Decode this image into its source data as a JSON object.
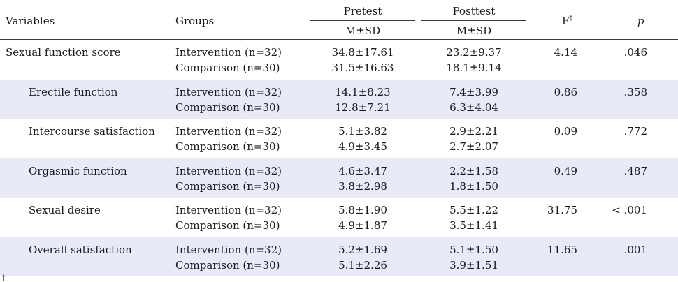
{
  "header": {
    "variables": "Variables",
    "groups": "Groups",
    "pretest": "Pretest",
    "posttest": "Posttest",
    "msd_pre": "M±SD",
    "msd_post": "M±SD",
    "f": "F",
    "f_mark": "†",
    "p": "p"
  },
  "rows": [
    {
      "variable": "Sexual function score",
      "g1": "Intervention (n=32)",
      "g2": "Comparison (n=30)",
      "pre1": "34.8±17.61",
      "pre2": "31.5±16.63",
      "post1": "23.2±9.37",
      "post2": "18.1±9.14",
      "f": "4.14",
      "p": ".046"
    },
    {
      "variable": "Erectile function",
      "g1": "Intervention (n=32)",
      "g2": "Comparison (n=30)",
      "pre1": "14.1±8.23",
      "pre2": "12.8±7.21",
      "post1": "7.4±3.99",
      "post2": "6.3±4.04",
      "f": "0.86",
      "p": ".358"
    },
    {
      "variable": "Intercourse satisfaction",
      "g1": "Intervention (n=32)",
      "g2": "Comparison (n=30)",
      "pre1": "5.1±3.82",
      "pre2": "4.9±3.45",
      "post1": "2.9±2.21",
      "post2": "2.7±2.07",
      "f": "0.09",
      "p": ".772"
    },
    {
      "variable": "Orgasmic function",
      "g1": "Intervention (n=32)",
      "g2": "Comparison (n=30)",
      "pre1": "4.6±3.47",
      "pre2": "3.8±2.98",
      "post1": "2.2±1.58",
      "post2": "1.8±1.50",
      "f": "0.49",
      "p": ".487"
    },
    {
      "variable": "Sexual desire",
      "g1": "Intervention (n=32)",
      "g2": "Comparison (n=30)",
      "pre1": "5.8±1.90",
      "pre2": "4.9±1.87",
      "post1": "5.5±1.22",
      "post2": "3.5±1.41",
      "f": "31.75",
      "p": "< .001"
    },
    {
      "variable": "Overall satisfaction",
      "g1": "Intervention (n=32)",
      "g2": "Comparison (n=30)",
      "pre1": "5.2±1.69",
      "pre2": "5.1±2.26",
      "post1": "5.1±1.50",
      "post2": "3.9±1.51",
      "f": "11.65",
      "p": ".001"
    }
  ],
  "footnote_mark": "†",
  "colors": {
    "band": "#e8ebf7",
    "rule": "#3a3a3a"
  }
}
